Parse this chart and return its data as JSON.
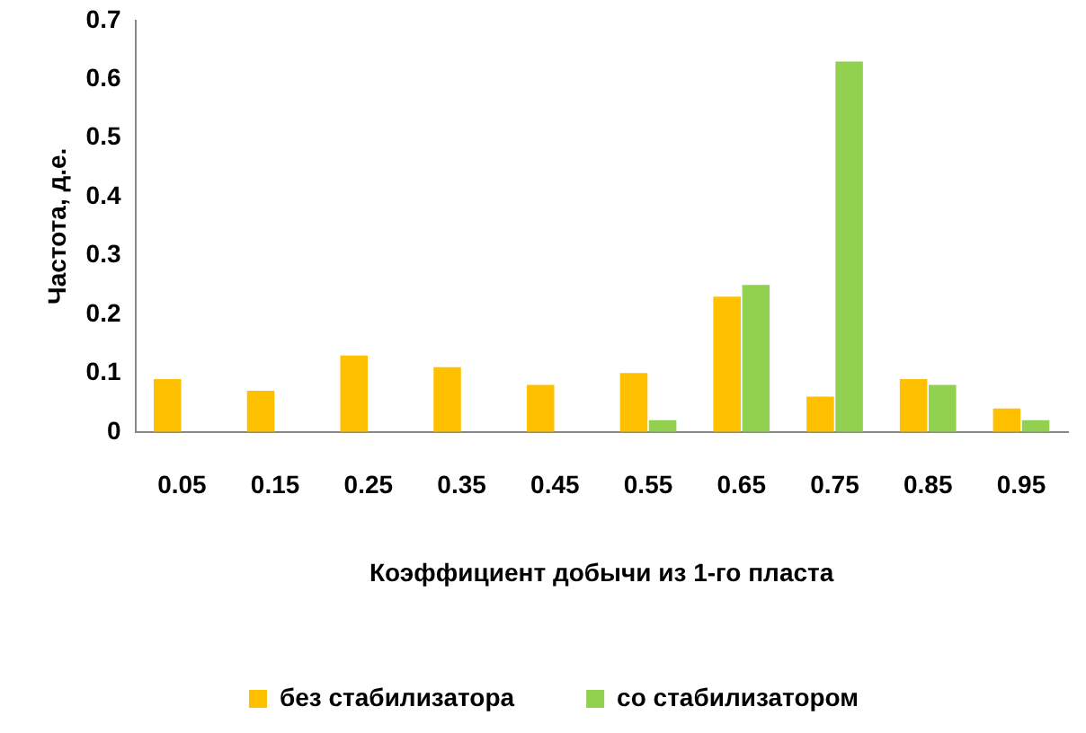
{
  "chart_data": {
    "type": "bar",
    "xlabel": "Коэффициент добычи из 1-го пласта",
    "ylabel": "Частота, д.е.",
    "categories": [
      "0.05",
      "0.15",
      "0.25",
      "0.35",
      "0.45",
      "0.55",
      "0.65",
      "0.75",
      "0.85",
      "0.95"
    ],
    "series": [
      {
        "name": "без стабилизатора",
        "color": "#ffc000",
        "values": [
          0.09,
          0.07,
          0.13,
          0.11,
          0.08,
          0.1,
          0.23,
          0.06,
          0.09,
          0.04
        ]
      },
      {
        "name": "со стабилизатором",
        "color": "#92d050",
        "values": [
          0,
          0,
          0,
          0,
          0,
          0.02,
          0.25,
          0.63,
          0.08,
          0.02
        ]
      }
    ],
    "ylim": [
      0,
      0.7
    ],
    "yticks": [
      0,
      0.1,
      0.2,
      0.3,
      0.4,
      0.5,
      0.6,
      0.7
    ],
    "grid": false,
    "legend": "bottom"
  }
}
